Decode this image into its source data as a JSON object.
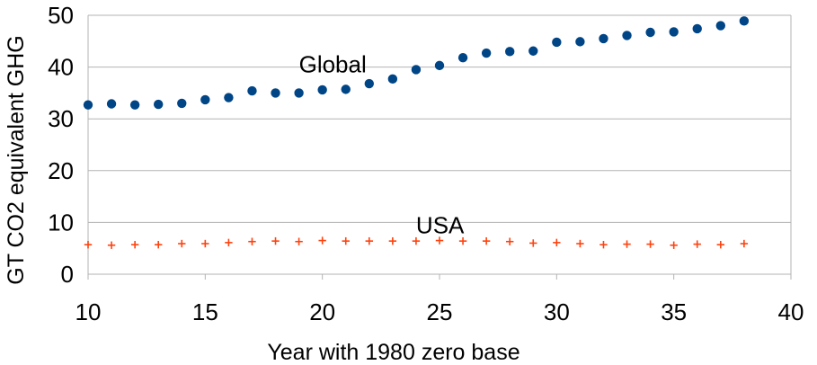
{
  "chart_data": {
    "type": "scatter",
    "title": "",
    "xlabel": "Year with 1980 zero base",
    "ylabel": "GT CO2 equivalent GHG",
    "xlim": [
      10,
      40
    ],
    "ylim": [
      0,
      50
    ],
    "xticks": [
      10,
      15,
      20,
      25,
      30,
      35,
      40
    ],
    "yticks": [
      0,
      10,
      20,
      30,
      40,
      50
    ],
    "grid": "horizontal",
    "legend": "none",
    "annotations": [
      {
        "text": "Global",
        "x": 19,
        "y": 40.5
      },
      {
        "text": "USA",
        "x": 24,
        "y": 9.5
      }
    ],
    "series": [
      {
        "name": "Global",
        "marker": "circle",
        "color": "#004586",
        "x": [
          10,
          11,
          12,
          13,
          14,
          15,
          16,
          17,
          18,
          19,
          20,
          21,
          22,
          23,
          24,
          25,
          26,
          27,
          28,
          29,
          30,
          31,
          32,
          33,
          34,
          35,
          36,
          37,
          38
        ],
        "y": [
          32.7,
          32.9,
          32.7,
          32.8,
          33.0,
          33.7,
          34.1,
          35.4,
          35.0,
          35.0,
          35.6,
          35.7,
          36.8,
          37.7,
          39.5,
          40.3,
          41.8,
          42.7,
          43.0,
          43.1,
          44.8,
          44.9,
          45.5,
          46.1,
          46.7,
          46.8,
          47.4,
          48.0,
          48.9
        ]
      },
      {
        "name": "USA",
        "marker": "plus",
        "color": "#ff420e",
        "x": [
          10,
          11,
          12,
          13,
          14,
          15,
          16,
          17,
          18,
          19,
          20,
          21,
          22,
          23,
          24,
          25,
          26,
          27,
          28,
          29,
          30,
          31,
          32,
          33,
          34,
          35,
          36,
          37,
          38
        ],
        "y": [
          5.7,
          5.6,
          5.7,
          5.7,
          5.9,
          5.9,
          6.1,
          6.3,
          6.4,
          6.3,
          6.5,
          6.4,
          6.4,
          6.4,
          6.4,
          6.5,
          6.4,
          6.4,
          6.3,
          6.0,
          6.1,
          5.9,
          5.7,
          5.8,
          5.8,
          5.6,
          5.8,
          5.7,
          5.9
        ]
      }
    ]
  }
}
